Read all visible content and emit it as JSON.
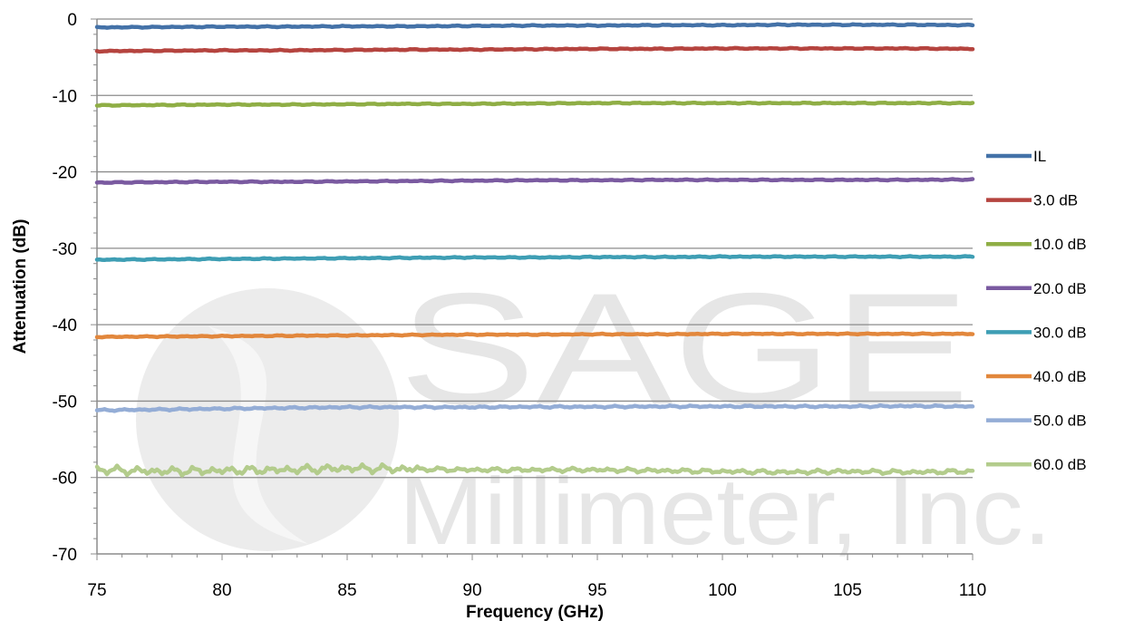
{
  "watermark": {
    "line1": "SAGE",
    "line2": "Millimeter, Inc."
  },
  "chart_data": {
    "type": "line",
    "xlabel": "Frequency (GHz)",
    "ylabel": "Attenuation (dB)",
    "xlim": [
      75,
      110
    ],
    "ylim": [
      -70,
      0
    ],
    "x_ticks": [
      75,
      80,
      85,
      90,
      95,
      100,
      105,
      110
    ],
    "y_ticks": [
      0,
      -10,
      -20,
      -30,
      -40,
      -50,
      -60,
      -70
    ],
    "grid": "horizontal",
    "legend_position": "right",
    "x": [
      75,
      77.5,
      80,
      82.5,
      85,
      87.5,
      90,
      92.5,
      95,
      97.5,
      100,
      102.5,
      105,
      107.5,
      110
    ],
    "series": [
      {
        "name": "IL",
        "color": "#4472a8",
        "values": [
          -1.1,
          -1.05,
          -1.0,
          -1.0,
          -0.95,
          -0.95,
          -0.9,
          -0.85,
          -0.85,
          -0.8,
          -0.8,
          -0.75,
          -0.75,
          -0.75,
          -0.8
        ]
      },
      {
        "name": "3.0 dB",
        "color": "#b5443f",
        "values": [
          -4.2,
          -4.15,
          -4.1,
          -4.1,
          -4.05,
          -4.0,
          -4.0,
          -3.95,
          -3.9,
          -3.9,
          -3.85,
          -3.85,
          -3.85,
          -3.85,
          -3.9
        ]
      },
      {
        "name": "10.0 dB",
        "color": "#8fae45",
        "values": [
          -11.3,
          -11.25,
          -11.2,
          -11.2,
          -11.15,
          -11.1,
          -11.1,
          -11.05,
          -11.0,
          -11.0,
          -11.0,
          -11.0,
          -11.0,
          -11.0,
          -11.0
        ]
      },
      {
        "name": "20.0 dB",
        "color": "#7a5aa0",
        "values": [
          -21.4,
          -21.35,
          -21.3,
          -21.3,
          -21.25,
          -21.2,
          -21.15,
          -21.1,
          -21.1,
          -21.05,
          -21.05,
          -21.05,
          -21.05,
          -21.05,
          -21.0
        ]
      },
      {
        "name": "30.0 dB",
        "color": "#3e9eb4",
        "values": [
          -31.5,
          -31.45,
          -31.4,
          -31.35,
          -31.3,
          -31.25,
          -31.2,
          -31.2,
          -31.15,
          -31.15,
          -31.1,
          -31.1,
          -31.1,
          -31.1,
          -31.1
        ]
      },
      {
        "name": "40.0 dB",
        "color": "#e2873c",
        "values": [
          -41.6,
          -41.55,
          -41.5,
          -41.45,
          -41.4,
          -41.35,
          -41.3,
          -41.3,
          -41.25,
          -41.25,
          -41.2,
          -41.2,
          -41.2,
          -41.2,
          -41.2
        ]
      },
      {
        "name": "50.0 dB",
        "color": "#94add6",
        "values": [
          -51.2,
          -51.1,
          -51.0,
          -50.9,
          -50.8,
          -50.8,
          -50.8,
          -50.75,
          -50.75,
          -50.7,
          -50.7,
          -50.7,
          -50.7,
          -50.65,
          -50.7
        ]
      },
      {
        "name": "60.0 dB",
        "color": "#b3cc8c",
        "values": [
          -59.0,
          -59.2,
          -59.1,
          -59.0,
          -58.8,
          -58.9,
          -59.0,
          -59.0,
          -59.0,
          -59.1,
          -59.2,
          -59.3,
          -59.2,
          -59.3,
          -59.2
        ]
      }
    ]
  }
}
